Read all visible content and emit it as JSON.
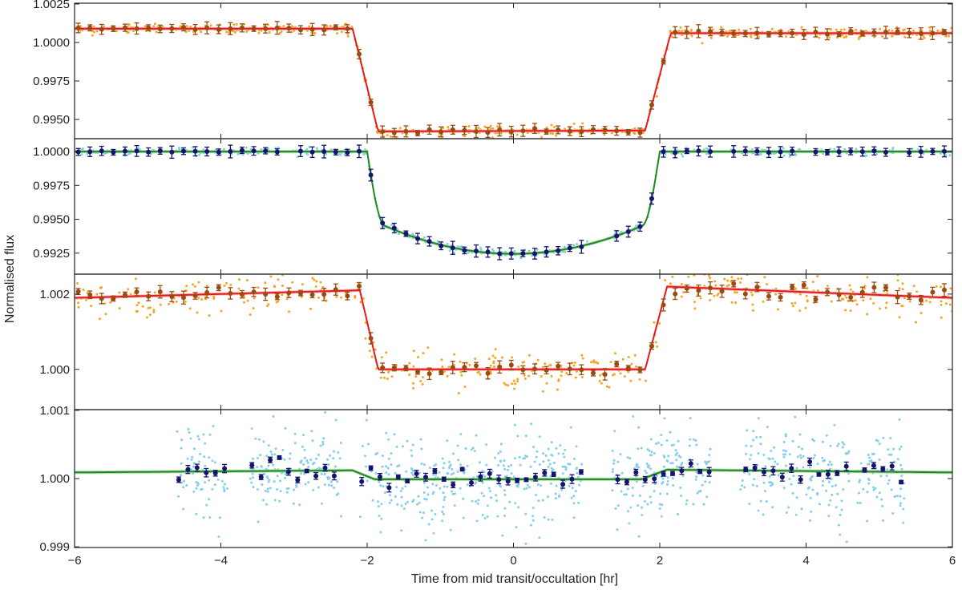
{
  "chart_data": {
    "type": "scatter",
    "figure_type": "multi-panel light curves",
    "xlabel": "Time from mid transit/occultation [hr]",
    "ylabel": "Normalised flux",
    "xlim": [
      -6,
      6
    ],
    "xticks": [
      -6,
      -4,
      -2,
      0,
      2,
      4,
      6
    ],
    "xtick_labels": [
      "−6",
      "−4",
      "−2",
      "0",
      "2",
      "4",
      "6"
    ],
    "colors": {
      "orange_points": "#f5a623",
      "brown_binned": "#9b4a12",
      "red_model": "#e8171b",
      "red_band": "#f6a5a8",
      "lightblue_points": "#87ceeb",
      "navy_binned": "#14146e",
      "green_model": "#1e8a1e",
      "green_band": "#9ccf9c"
    },
    "panels": [
      {
        "name": "panel-1",
        "ylim": [
          0.99375,
          1.00255
        ],
        "yticks": [
          0.995,
          0.9975,
          1.0,
          1.0025
        ],
        "ytick_labels": [
          "0.9950",
          "0.9975",
          "1.0000",
          "1.0025"
        ],
        "model_color": "red",
        "points": "orange",
        "noise": 0.00016,
        "binned_noise": 6e-05,
        "model": {
          "kind": "box",
          "base_start": 1.0009,
          "base_end": 1.0006,
          "floor_start": 0.99415,
          "floor_end": 0.99435,
          "t1": -2.2,
          "t2": -1.85,
          "t3": 1.8,
          "t4": 2.15
        }
      },
      {
        "name": "panel-2",
        "ylim": [
          0.99095,
          1.00095
        ],
        "yticks": [
          0.9925,
          0.995,
          0.9975,
          1.0
        ],
        "ytick_labels": [
          "0.9925",
          "0.9950",
          "0.9975",
          "1.0000"
        ],
        "model_color": "green",
        "points": "lightblue",
        "noise": 0.00013,
        "binned_noise": 4e-05,
        "gaps": [
          [
            -3.2,
            -3.05
          ],
          [
            1.05,
            1.35
          ],
          [
            2.7,
            2.95
          ],
          [
            3.95,
            4.1
          ],
          [
            5.2,
            5.4
          ]
        ],
        "model": {
          "kind": "transit",
          "base": 1.0,
          "depth_center": 0.99245,
          "depth_edge": 0.9945,
          "t1": -2.0,
          "t2": -1.75,
          "t3": 1.75,
          "t4": 2.0
        }
      },
      {
        "name": "panel-3",
        "ylim": [
          0.99893,
          1.00253
        ],
        "yticks": [
          1.0,
          1.002
        ],
        "ytick_labels": [
          "1.000",
          "1.002"
        ],
        "model_color": "red",
        "points": "orange",
        "noise": 0.00028,
        "binned_noise": 0.00012,
        "model": {
          "kind": "box",
          "base_start": 1.0019,
          "base_end": 1.0019,
          "base_peak_left": 1.0021,
          "base_peak_right": 1.0022,
          "floor_start": 1.0,
          "floor_end": 1.0,
          "t1": -2.1,
          "t2": -1.85,
          "t3": 1.8,
          "t4": 2.1
        }
      },
      {
        "name": "panel-4",
        "ylim": [
          0.99899,
          1.00101
        ],
        "yticks": [
          0.999,
          1.0,
          1.001
        ],
        "ytick_labels": [
          "0.999",
          "1.000",
          "1.001"
        ],
        "model_color": "green",
        "points": "lightblue",
        "noise": 0.00032,
        "binned_noise": 8e-05,
        "segments": [
          [
            -4.6,
            -3.9
          ],
          [
            -3.6,
            -2.35
          ],
          [
            -2.1,
            -0.35
          ],
          [
            -0.35,
            0.95
          ],
          [
            1.35,
            2.7
          ],
          [
            3.1,
            4.6
          ],
          [
            4.7,
            5.35
          ]
        ],
        "model": {
          "kind": "box",
          "base_start": 1.00009,
          "base_end": 1.00009,
          "base_peak_left": 1.00012,
          "base_peak_right": 1.00013,
          "floor_start": 0.99999,
          "floor_end": 0.99999,
          "t1": -2.2,
          "t2": -1.9,
          "t3": 1.75,
          "t4": 2.1
        }
      }
    ]
  }
}
